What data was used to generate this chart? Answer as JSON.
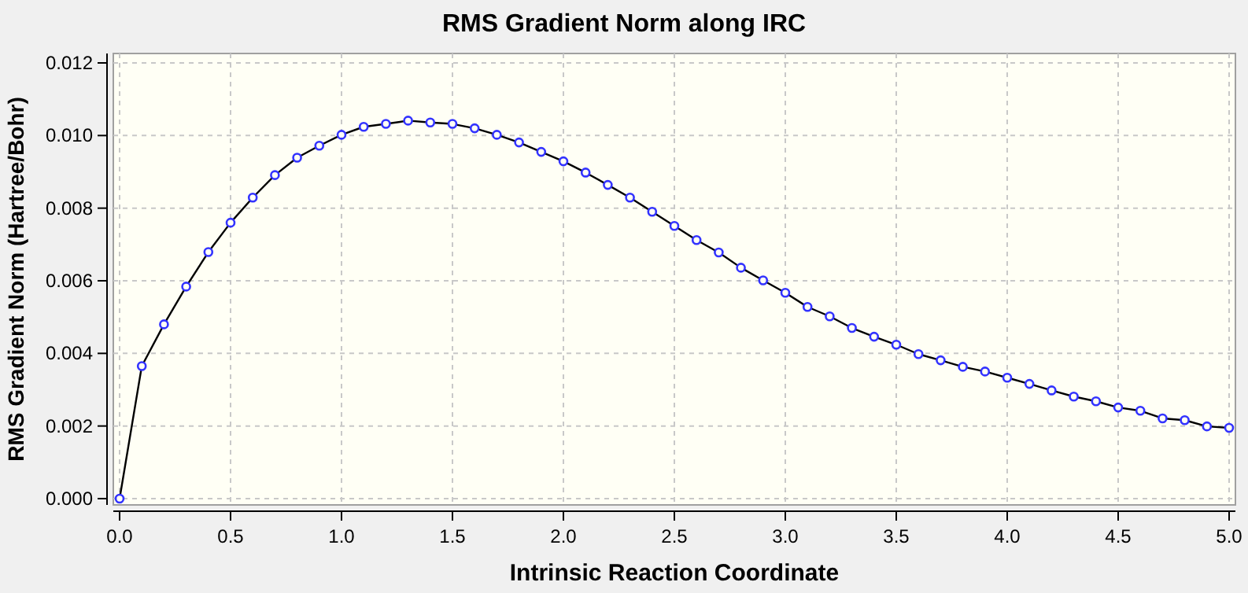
{
  "chart_data": {
    "type": "line",
    "title": "RMS Gradient Norm along IRC",
    "xlabel": "Intrinsic Reaction Coordinate",
    "ylabel": "RMS Gradient Norm (Hartree/Bohr)",
    "x": [
      0,
      0.1,
      0.2,
      0.3,
      0.4,
      0.5,
      0.6,
      0.7,
      0.8,
      0.9,
      1.0,
      1.1,
      1.2,
      1.3,
      1.4,
      1.5,
      1.6,
      1.7,
      1.8,
      1.9,
      2.0,
      2.1,
      2.2,
      2.3,
      2.4,
      2.5,
      2.6,
      2.7,
      2.8,
      2.9,
      3.0,
      3.1,
      3.2,
      3.3,
      3.4,
      3.5,
      3.6,
      3.7,
      3.8,
      3.9,
      4.0,
      4.1,
      4.2,
      4.3,
      4.4,
      4.5,
      4.6,
      4.7,
      4.8,
      4.9,
      5.0
    ],
    "series": [
      {
        "color": "#000000",
        "values": [
          0,
          0.00365,
          0.0048,
          0.00584,
          0.00679,
          0.0076,
          0.00829,
          0.00891,
          0.00939,
          0.00972,
          0.01002,
          0.01024,
          0.01032,
          0.01041,
          0.01036,
          0.01032,
          0.0102,
          0.01002,
          0.00981,
          0.00955,
          0.00929,
          0.00898,
          0.00864,
          0.00829,
          0.0079,
          0.00751,
          0.00712,
          0.00678,
          0.00636,
          0.00601,
          0.00567,
          0.00528,
          0.00502,
          0.0047,
          0.00446,
          0.00424,
          0.00398,
          0.00381,
          0.00363,
          0.0035,
          0.00333,
          0.00316,
          0.00298,
          0.00281,
          0.00268,
          0.00251,
          0.00242,
          0.00221,
          0.00216,
          0.00199,
          0.00195
        ]
      }
    ],
    "xlim": [
      0,
      5
    ],
    "ylim": [
      0,
      0.012
    ],
    "xticks": [
      {
        "value": 0,
        "label": "0.0"
      },
      {
        "value": 0.5,
        "label": "0.5"
      },
      {
        "value": 1,
        "label": "1.0"
      },
      {
        "value": 1.5,
        "label": "1.5"
      },
      {
        "value": 2,
        "label": "2.0"
      },
      {
        "value": 2.5,
        "label": "2.5"
      },
      {
        "value": 3,
        "label": "3.0"
      },
      {
        "value": 3.5,
        "label": "3.5"
      },
      {
        "value": 4,
        "label": "4.0"
      },
      {
        "value": 4.5,
        "label": "4.5"
      },
      {
        "value": 5,
        "label": "5.0"
      }
    ],
    "yticks": [
      {
        "value": 0,
        "label": "0.000"
      },
      {
        "value": 0.002,
        "label": "0.002"
      },
      {
        "value": 0.004,
        "label": "0.004"
      },
      {
        "value": 0.006,
        "label": "0.006"
      },
      {
        "value": 0.008,
        "label": "0.008"
      },
      {
        "value": 0.01,
        "label": "0.010"
      },
      {
        "value": 0.012,
        "label": "0.012"
      }
    ],
    "grid": true,
    "marker": "circle",
    "line_style": "solid"
  }
}
